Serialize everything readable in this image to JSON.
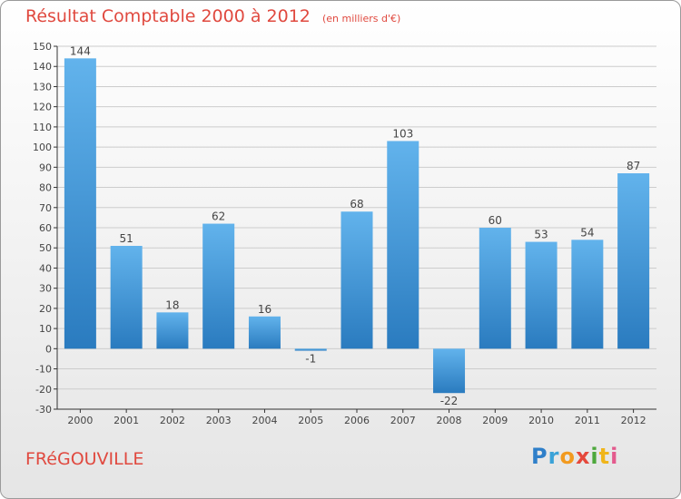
{
  "header": {
    "title": "Résultat Comptable 2000 à 2012",
    "subtitle": "(en milliers d'€)"
  },
  "commune": "FRéGOUVILLE",
  "logo": {
    "letters": [
      "P",
      "r",
      "o",
      "x",
      "i",
      "t",
      "i"
    ],
    "colors": [
      "#2f7fc9",
      "#3aa2d8",
      "#f29a1f",
      "#e5483b",
      "#4da83c",
      "#f0b51b",
      "#e35a8d"
    ]
  },
  "colors": {
    "bar_light": "#62b3ec",
    "bar_dark": "#2a7bbf",
    "grid": "#cccccc",
    "axis": "#333333"
  },
  "chart_data": {
    "type": "bar",
    "title": "Résultat Comptable 2000 à 2012",
    "subtitle": "(en milliers d'€)",
    "xlabel": "",
    "ylabel": "",
    "categories": [
      "2000",
      "2001",
      "2002",
      "2003",
      "2004",
      "2005",
      "2006",
      "2007",
      "2008",
      "2009",
      "2010",
      "2011",
      "2012"
    ],
    "values": [
      144,
      51,
      18,
      62,
      16,
      -1,
      68,
      103,
      -22,
      60,
      53,
      54,
      87
    ],
    "ylim": [
      -30,
      150
    ],
    "yticks": [
      -30,
      -20,
      -10,
      0,
      10,
      20,
      30,
      40,
      50,
      60,
      70,
      80,
      90,
      100,
      110,
      120,
      130,
      140,
      150
    ],
    "grid": true
  }
}
